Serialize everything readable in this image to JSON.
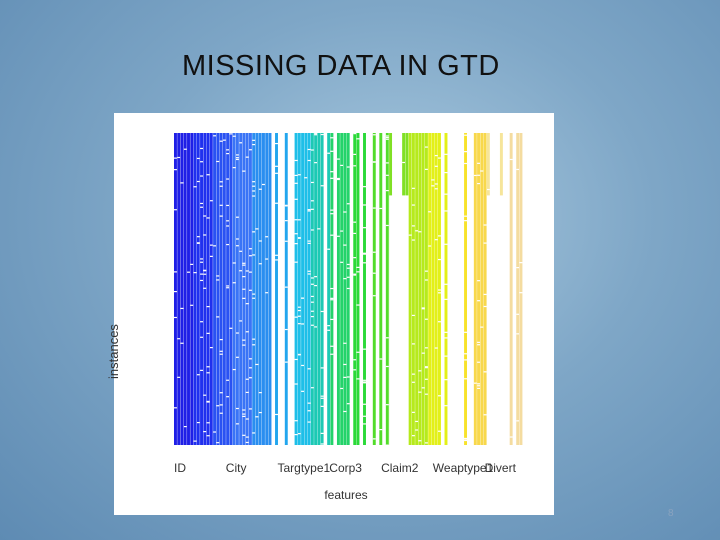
{
  "slide": {
    "title": "MISSING DATA IN GTD",
    "page_number": "8"
  },
  "chart_data": {
    "type": "heatmap",
    "title": "",
    "xlabel": "features",
    "ylabel": "instances",
    "tick_labels": [
      "ID",
      "City",
      "Targtype1",
      "Corp3",
      "Claim2",
      "Weaptype1",
      "Divert"
    ],
    "columns": [
      {
        "color": "#1f1fe6",
        "present": 1.0
      },
      {
        "color": "#2030ee",
        "present": 0.85
      },
      {
        "color": "#2a52f2",
        "present": 0.9
      },
      {
        "color": "#3a74f6",
        "present": 0.8
      },
      {
        "color": "#2a8ef0",
        "present": 0.75
      },
      {
        "color": "#22a6ee",
        "present": 0.7
      },
      {
        "color": "#1ebfe8",
        "present": 0.65
      },
      {
        "color": "#1cc9b4",
        "present": 0.7
      },
      {
        "color": "#24d36a",
        "present": 0.6
      },
      {
        "color": "#2bd938",
        "present": 0.55
      },
      {
        "color": "#52dc2a",
        "present": 0.5
      },
      {
        "color": "#80e024",
        "present": 0.15
      },
      {
        "color": "#b6ea1c",
        "present": 0.55
      },
      {
        "color": "#e3f018",
        "present": 0.6
      },
      {
        "color": "#f7e22a",
        "present": 0.5
      },
      {
        "color": "#f8d84c",
        "present": 0.55
      },
      {
        "color": "#f6e59a",
        "present": 0.25
      },
      {
        "color": "#f4dca0",
        "present": 0.3
      }
    ]
  }
}
